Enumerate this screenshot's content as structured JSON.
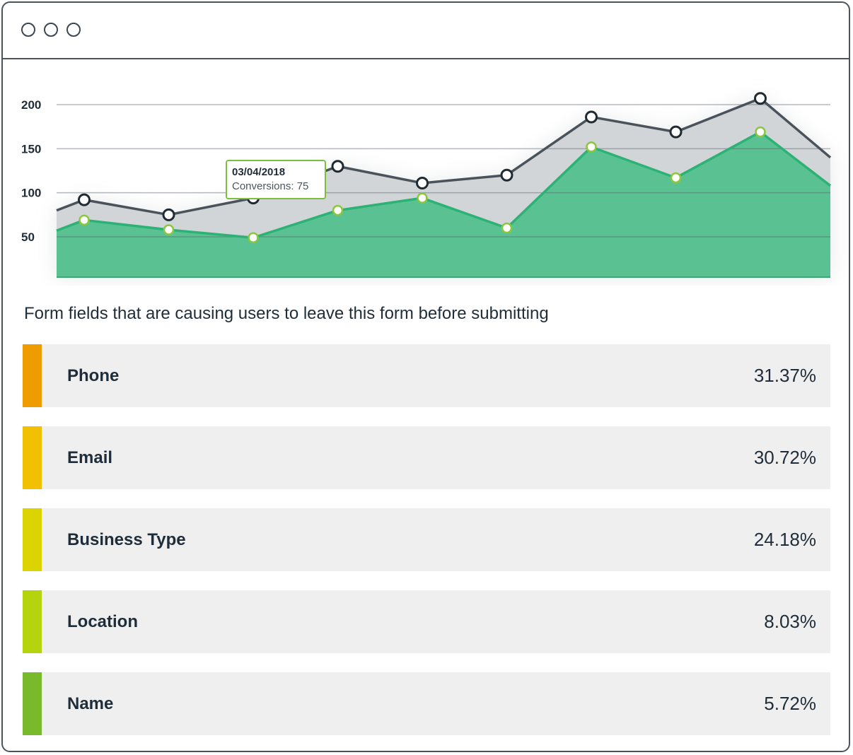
{
  "window": {
    "controls": [
      "window-dot-1",
      "window-dot-2",
      "window-dot-3"
    ]
  },
  "chart_data": {
    "type": "area",
    "y_ticks": [
      50,
      100,
      150,
      200
    ],
    "ylim": [
      10,
      215
    ],
    "x_count": 10,
    "grid": true,
    "series": [
      {
        "values": [
          80,
          92,
          75,
          94,
          130,
          111,
          120,
          186,
          169,
          207,
          140
        ],
        "color": "#4a535c",
        "fill": "#d2d5d8"
      },
      {
        "values": [
          57,
          69,
          58,
          49,
          80,
          94,
          60,
          152,
          117,
          169,
          108
        ],
        "color": "#2db275",
        "fill": "#5ac193"
      }
    ],
    "tooltip": {
      "date": "03/04/2018",
      "text": "Conversions: 75"
    }
  },
  "section": {
    "title": "Form fields that are causing users to leave this form before submitting"
  },
  "fields": [
    {
      "label": "Phone",
      "value": "31.37%",
      "color": "#ee9c00"
    },
    {
      "label": "Email",
      "value": "30.72%",
      "color": "#f1c000"
    },
    {
      "label": "Business Type",
      "value": "24.18%",
      "color": "#dbd400"
    },
    {
      "label": "Location",
      "value": "8.03%",
      "color": "#b6d40e"
    },
    {
      "label": "Name",
      "value": "5.72%",
      "color": "#79b92c"
    }
  ]
}
